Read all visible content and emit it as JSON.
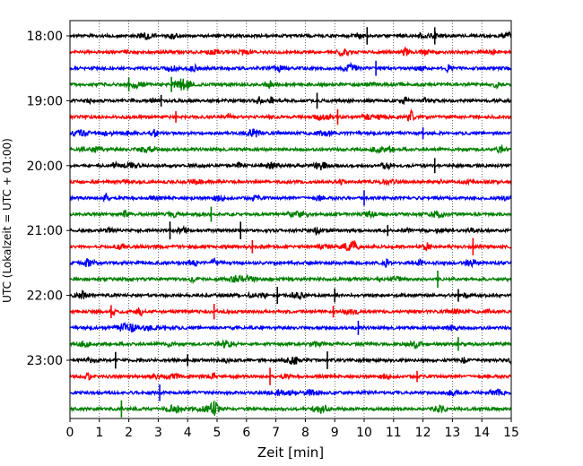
{
  "chart_data": {
    "type": "line",
    "title": "",
    "xlabel": "Zeit  [min]",
    "ylabel": "UTC (Lokalzeit = UTC + 01:00)",
    "xlim": [
      0,
      15
    ],
    "x_ticks": [
      "0",
      "1",
      "2",
      "3",
      "4",
      "5",
      "6",
      "7",
      "8",
      "9",
      "10",
      "11",
      "12",
      "13",
      "14",
      "15"
    ],
    "y_tick_labels": [
      "18:00",
      "19:00",
      "20:00",
      "21:00",
      "22:00",
      "23:00"
    ],
    "grid": "vertical dotted at each minute",
    "trace_colors": [
      "#000000",
      "#ff0000",
      "#0000ff",
      "#008000"
    ],
    "traces": [
      {
        "start": "18:00",
        "color": "#000000",
        "spikes": [
          10.1,
          12.4
        ]
      },
      {
        "start": "18:15",
        "color": "#ff0000",
        "spikes": []
      },
      {
        "start": "18:30",
        "color": "#0000ff",
        "spikes": [
          10.4
        ]
      },
      {
        "start": "18:45",
        "color": "#008000",
        "spikes": [
          3.45,
          2.0
        ]
      },
      {
        "start": "19:00",
        "color": "#000000",
        "spikes": [
          3.1,
          8.4
        ]
      },
      {
        "start": "19:15",
        "color": "#ff0000",
        "spikes": [
          3.6,
          9.1
        ]
      },
      {
        "start": "19:30",
        "color": "#0000ff",
        "spikes": [
          12.0
        ]
      },
      {
        "start": "19:45",
        "color": "#008000",
        "spikes": []
      },
      {
        "start": "20:00",
        "color": "#000000",
        "spikes": [
          12.4
        ]
      },
      {
        "start": "20:15",
        "color": "#ff0000",
        "spikes": []
      },
      {
        "start": "20:30",
        "color": "#0000ff",
        "spikes": [
          10.0
        ]
      },
      {
        "start": "20:45",
        "color": "#008000",
        "spikes": [
          4.8
        ]
      },
      {
        "start": "21:00",
        "color": "#000000",
        "spikes": [
          5.8,
          10.8,
          3.4
        ]
      },
      {
        "start": "21:15",
        "color": "#ff0000",
        "spikes": [
          6.2,
          13.7
        ]
      },
      {
        "start": "21:30",
        "color": "#0000ff",
        "spikes": []
      },
      {
        "start": "21:45",
        "color": "#008000",
        "spikes": [
          12.5
        ]
      },
      {
        "start": "22:00",
        "color": "#000000",
        "spikes": [
          7.05,
          13.2,
          9.0
        ]
      },
      {
        "start": "22:15",
        "color": "#ff0000",
        "spikes": [
          8.95,
          4.9,
          1.4
        ]
      },
      {
        "start": "22:30",
        "color": "#0000ff",
        "spikes": [
          9.8
        ]
      },
      {
        "start": "22:45",
        "color": "#008000",
        "spikes": [
          13.2
        ]
      },
      {
        "start": "23:00",
        "color": "#000000",
        "spikes": [
          1.55,
          8.75,
          4.0
        ]
      },
      {
        "start": "23:15",
        "color": "#ff0000",
        "spikes": [
          6.8,
          11.8
        ]
      },
      {
        "start": "23:30",
        "color": "#0000ff",
        "spikes": [
          3.05
        ]
      },
      {
        "start": "23:45",
        "color": "#008000",
        "spikes": [
          1.75
        ]
      }
    ]
  }
}
